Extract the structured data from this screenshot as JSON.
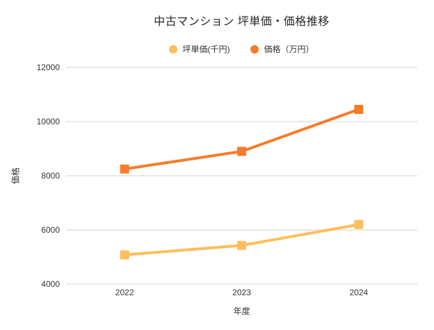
{
  "chart_data": {
    "type": "line",
    "title": "中古マンション 坪単価・価格推移",
    "xlabel": "年度",
    "ylabel": "価格",
    "categories": [
      "2022",
      "2023",
      "2024"
    ],
    "series": [
      {
        "name": "坪単価(千円)",
        "color": "#FDBE5C",
        "marker": "square",
        "values": [
          5080,
          5430,
          6200
        ]
      },
      {
        "name": "価格（万円）",
        "color": "#F87C28",
        "marker": "square",
        "values": [
          8250,
          8900,
          10450
        ]
      }
    ],
    "ylim": [
      4000,
      12000
    ],
    "yticks": [
      4000,
      6000,
      8000,
      10000,
      12000
    ],
    "grid": "horizontal",
    "legend_position": "top"
  },
  "colors": {
    "background": "#ffffff",
    "grid": "#e0e0e0",
    "text": "#333333",
    "title": "#262626"
  }
}
